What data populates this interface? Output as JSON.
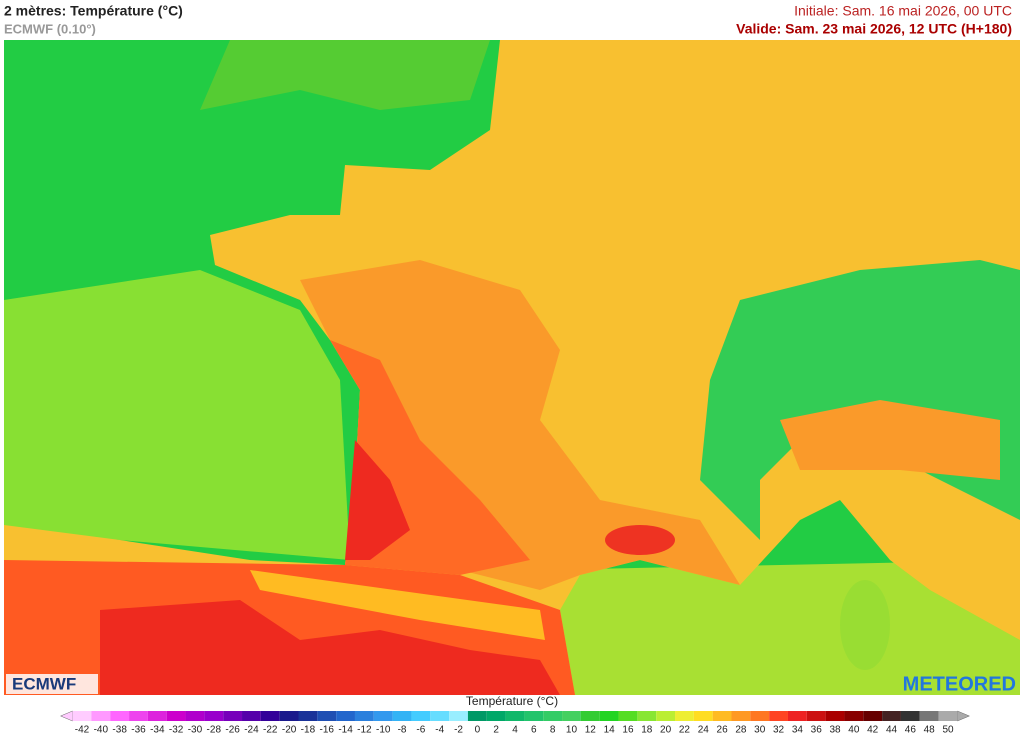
{
  "header": {
    "title": "2 mètres: Température (°C)",
    "model": "ECMWF (0.10°)",
    "init": "Initiale: Sam. 16 mai 2026, 00 UTC",
    "valid": "Valide: Sam. 23 mai 2026, 12 UTC (H+180)"
  },
  "logos": {
    "left": "ECMWF",
    "right": "METEORED"
  },
  "colorbar": {
    "title": "Température (°C)",
    "ticks": [
      -42,
      -40,
      -38,
      -36,
      -34,
      -32,
      -30,
      -28,
      -26,
      -24,
      -22,
      -20,
      -18,
      -16,
      -14,
      -12,
      -10,
      -8,
      -6,
      -4,
      -2,
      0,
      2,
      4,
      6,
      8,
      10,
      12,
      14,
      16,
      18,
      20,
      22,
      24,
      26,
      28,
      30,
      32,
      34,
      36,
      38,
      40,
      42,
      44,
      46,
      48,
      50
    ],
    "colors": [
      "#ffccff",
      "#ff99ff",
      "#ff66ff",
      "#ee44ee",
      "#dd22dd",
      "#cc00cc",
      "#b000cc",
      "#9900cc",
      "#7700bb",
      "#5500aa",
      "#330099",
      "#1a1a8c",
      "#1a3399",
      "#1f4fb3",
      "#2266cc",
      "#2b80dd",
      "#3399ee",
      "#33b3f5",
      "#44ccff",
      "#66ddff",
      "#99eeff",
      "#009966",
      "#00a868",
      "#10b86a",
      "#22c46c",
      "#33cc66",
      "#44d060",
      "#33cc33",
      "#22d422",
      "#55dd22",
      "#88e633",
      "#bbee33",
      "#eeee33",
      "#ffdd22",
      "#ffbb22",
      "#ff9922",
      "#ff7722",
      "#ff4422",
      "#ee2222",
      "#cc1111",
      "#aa0000",
      "#880000",
      "#660000",
      "#442222",
      "#333333",
      "#777777",
      "#aaaaaa"
    ]
  }
}
